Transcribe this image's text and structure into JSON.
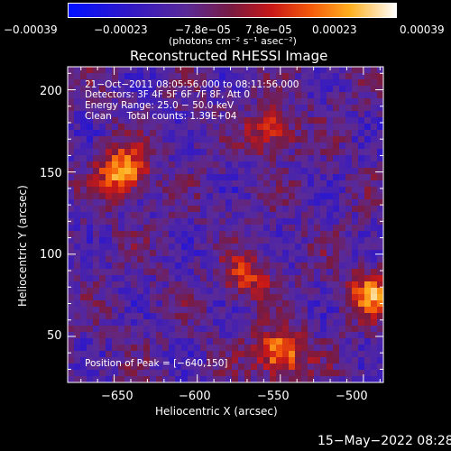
{
  "chart_data": {
    "type": "heatmap",
    "title": "Reconstructed RHESSI Image",
    "xlabel": "Heliocentric X (arcsec)",
    "ylabel": "Heliocentric Y (arcsec)",
    "xlim": [
      -678,
      -488
    ],
    "ylim": [
      22,
      214
    ],
    "x_ticks": [
      -650,
      -600,
      -550,
      -500
    ],
    "x_tick_labels": [
      "−650",
      "−600",
      "−550",
      "−500"
    ],
    "y_ticks": [
      50,
      100,
      150,
      200
    ],
    "y_tick_labels": [
      "50",
      "100",
      "150",
      "200"
    ],
    "colorbar": {
      "colormap": "blue-purple-red-orange-yellow-white",
      "range": [
        -0.00039,
        0.00039
      ],
      "tick_labels": [
        "−0.00039",
        "−0.00023",
        "−7.8e−05",
        "7.8e−05",
        "0.00023",
        "0.00039"
      ],
      "unit_label": "(photons cm⁻² s⁻¹ asec⁻²)"
    },
    "annotations": [
      "21−Oct−2011 08:05:56.000 to 08:11:56.000",
      "Detectors: 3F 4F 5F 6F 7F 8F, Att 0",
      "Energy Range: 25.0 − 50.0 keV",
      "Clean     Total counts: 1.39E+04"
    ],
    "peak_label": "Position of Peak = [−640,150]",
    "peak": [
      -640,
      150
    ],
    "bright_sources": [
      {
        "x": -645,
        "y": 150,
        "value": 0.00039
      },
      {
        "x": -550,
        "y": 40,
        "value": 0.00036
      },
      {
        "x": -495,
        "y": 75,
        "value": 0.0003
      },
      {
        "x": -555,
        "y": 175,
        "value": 0.00024
      },
      {
        "x": -570,
        "y": 85,
        "value": 0.00022
      }
    ]
  },
  "footer": {
    "timestamp": "15−May−2022 08:28"
  }
}
